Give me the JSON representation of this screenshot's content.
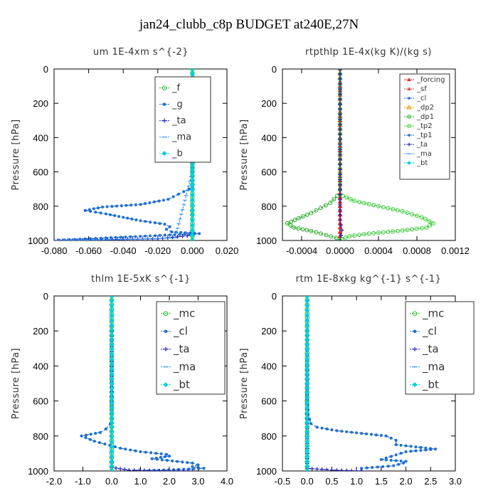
{
  "figure": {
    "title": "jan24_clubb_c8p  BUDGET at240E,27N"
  },
  "colors": {
    "forcing": "#dd2222",
    "sf": "#ee4444",
    "cl": "#1e6fd0",
    "mc": "#22bb22",
    "dp2": "#ee9900",
    "dp1": "#22aa22",
    "tp2": "#33cc33",
    "tp1": "#1e6fd0",
    "ta": "#2222bb",
    "ma": "#3399ff",
    "bt": "#00d0e0",
    "f": "#22bb22",
    "g": "#1e6fd0"
  },
  "chart_data": [
    {
      "type": "line",
      "title": "um   1E-4xm  s^{-2}",
      "ylabel": "Pressure [hPa]",
      "xlim": [
        -0.08,
        0.02
      ],
      "ylim": [
        1000,
        0
      ],
      "xticks": [
        "-0.080",
        "-0.060",
        "-0.040",
        "-0.020",
        "0.000",
        "0.020"
      ],
      "xtick_values": [
        -0.08,
        -0.06,
        -0.04,
        -0.02,
        0.0,
        0.02
      ],
      "yticks": [
        "0",
        "200",
        "400",
        "600",
        "800",
        "1000"
      ],
      "ytick_values": [
        0,
        200,
        400,
        600,
        800,
        1000
      ],
      "legend": [
        "_f",
        "_g",
        "_ta",
        "_ma",
        "_b"
      ],
      "series": [
        {
          "name": "_f",
          "key": "f",
          "x": [
            0,
            0,
            0,
            0,
            0,
            0,
            0,
            0,
            0,
            0,
            0,
            0,
            0,
            0,
            0,
            0,
            0,
            0,
            0,
            0,
            0
          ],
          "y": [
            0,
            50,
            100,
            150,
            200,
            250,
            300,
            350,
            400,
            450,
            500,
            550,
            600,
            650,
            700,
            750,
            800,
            850,
            900,
            950,
            1000
          ]
        },
        {
          "name": "_g",
          "key": "g",
          "x": [
            0.0,
            0.0005,
            0.001,
            0.001,
            0.002,
            0.001,
            0.001,
            0.001,
            0.001,
            0.001,
            0.0,
            0.0,
            0.0,
            0.0,
            -0.002,
            -0.008,
            -0.014,
            -0.03,
            -0.052,
            -0.062,
            -0.05,
            -0.04,
            -0.03,
            -0.016,
            -0.013,
            -0.015,
            -0.012,
            0.004,
            -0.05,
            -0.08
          ],
          "y": [
            0,
            100,
            150,
            200,
            250,
            300,
            350,
            400,
            450,
            500,
            550,
            600,
            650,
            690,
            700,
            730,
            760,
            790,
            805,
            825,
            845,
            865,
            885,
            905,
            920,
            935,
            950,
            960,
            985,
            1000
          ]
        },
        {
          "name": "_ta",
          "key": "ta",
          "x": [
            0.0,
            0.0,
            0.0,
            -0.02,
            -0.078
          ],
          "y": [
            0,
            500,
            970,
            990,
            1000
          ]
        },
        {
          "name": "_ma",
          "key": "ma",
          "x": [
            0.0,
            0.0,
            -0.01,
            -0.04,
            -0.08
          ],
          "y": [
            0,
            600,
            985,
            995,
            1000
          ]
        },
        {
          "name": "_b",
          "key": "bt",
          "x": [
            0.0,
            0.0,
            0.0
          ],
          "y": [
            0,
            500,
            1000
          ]
        }
      ]
    },
    {
      "type": "line",
      "title": "rtpthlp   1E-4x(kg  K)/(kg  s)",
      "ylabel": "Pressure [hPa]",
      "xlim": [
        -0.0006,
        0.0012
      ],
      "ylim": [
        1000,
        0
      ],
      "xticks": [
        "-0.0004",
        "0.0000",
        "0.0004",
        "0.0008",
        "0.0012"
      ],
      "xtick_values": [
        -0.0004,
        0.0,
        0.0004,
        0.0008,
        0.0012
      ],
      "yticks": [
        "0",
        "200",
        "400",
        "600",
        "800",
        "1000"
      ],
      "ytick_values": [
        0,
        200,
        400,
        600,
        800,
        1000
      ],
      "legend": [
        "_forcing",
        "_sf",
        "_cl",
        "_dp2",
        "_dp1",
        "_tp2",
        "_tp1",
        "_ta",
        "_ma",
        "_bt"
      ],
      "series": [
        {
          "name": "_forcing",
          "key": "forcing",
          "x": [
            0,
            0,
            0,
            0,
            0,
            0,
            0,
            0,
            0,
            0,
            0,
            0,
            0,
            0,
            0,
            0,
            0,
            0,
            0,
            0,
            0
          ],
          "y": [
            0,
            50,
            100,
            150,
            200,
            250,
            300,
            350,
            400,
            450,
            500,
            550,
            600,
            650,
            700,
            750,
            800,
            850,
            900,
            950,
            1000
          ]
        },
        {
          "name": "_dp1",
          "key": "dp1",
          "x": [
            0.0,
            0.0,
            -3e-05,
            -0.0001,
            -0.0002,
            -0.0003,
            -0.00043,
            -0.00055,
            -0.00048,
            -0.0003,
            -0.0002,
            -4e-05,
            0.0
          ],
          "y": [
            0,
            700,
            740,
            780,
            810,
            840,
            870,
            900,
            925,
            945,
            960,
            985,
            1000
          ]
        },
        {
          "name": "_tp2",
          "key": "tp2",
          "x": [
            0.0,
            0.0,
            3e-05,
            0.00015,
            0.0004,
            0.00065,
            0.00085,
            0.00097,
            0.0009,
            0.0006,
            0.0003,
            0.0001,
            2e-05,
            0.0
          ],
          "y": [
            0,
            700,
            740,
            770,
            800,
            830,
            865,
            900,
            925,
            945,
            960,
            975,
            990,
            1000
          ]
        },
        {
          "name": "_ta",
          "key": "ta",
          "x": [
            0.0,
            0.0,
            2e-05,
            0.0
          ],
          "y": [
            0,
            880,
            940,
            1000
          ]
        }
      ]
    },
    {
      "type": "line",
      "title": "thlm   1E-5xK  s^{-1}",
      "ylabel": "Pressure [hPa]",
      "xlim": [
        -2.0,
        4.0
      ],
      "ylim": [
        1000,
        0
      ],
      "xticks": [
        "-2.0",
        "-1.0",
        "0.0",
        "1.0",
        "2.0",
        "3.0",
        "4.0"
      ],
      "xtick_values": [
        -2,
        -1,
        0,
        1,
        2,
        3,
        4
      ],
      "yticks": [
        "0",
        "200",
        "400",
        "600",
        "800",
        "1000"
      ],
      "ytick_values": [
        0,
        200,
        400,
        600,
        800,
        1000
      ],
      "legend": [
        "_mc",
        "_cl",
        "_ta",
        "_ma",
        "_bt"
      ],
      "series": [
        {
          "name": "_mc",
          "key": "mc",
          "x": [
            0,
            0,
            0,
            0,
            0,
            0,
            0,
            0,
            0,
            0,
            0,
            0,
            0,
            0,
            0,
            0,
            0,
            0,
            0,
            0,
            0
          ],
          "y": [
            0,
            50,
            100,
            150,
            200,
            250,
            300,
            350,
            400,
            450,
            500,
            550,
            600,
            650,
            700,
            750,
            800,
            850,
            900,
            950,
            1000
          ]
        },
        {
          "name": "_cl",
          "key": "cl",
          "x": [
            0.0,
            0.0,
            0.0,
            -0.05,
            -0.2,
            -0.4,
            -1.05,
            -0.6,
            0.3,
            1.0,
            1.9,
            2.0,
            1.4,
            2.8,
            3.0,
            2.8,
            3.2,
            1.1
          ],
          "y": [
            0,
            600,
            700,
            730,
            760,
            780,
            800,
            830,
            870,
            890,
            905,
            915,
            930,
            955,
            965,
            975,
            985,
            1000
          ]
        },
        {
          "name": "_ta",
          "key": "ta",
          "x": [
            0.0,
            0.0,
            0.6,
            1.5,
            2.8
          ],
          "y": [
            0,
            980,
            995,
            998,
            1000
          ]
        },
        {
          "name": "_ma",
          "key": "ma",
          "x": [
            0.0,
            0.0,
            0.0
          ],
          "y": [
            0,
            500,
            1000
          ]
        },
        {
          "name": "_bt",
          "key": "bt",
          "x": [
            0.0,
            0.0,
            0.0
          ],
          "y": [
            0,
            500,
            1000
          ]
        }
      ]
    },
    {
      "type": "line",
      "title": "rtm   1E-8xkg  kg^{-1}  s^{-1}",
      "ylabel": "Pressure [hPa]",
      "xlim": [
        -0.5,
        3.0
      ],
      "ylim": [
        1000,
        0
      ],
      "xticks": [
        "-0.5",
        "0.0",
        "0.5",
        "1.0",
        "1.5",
        "2.0",
        "2.5",
        "3.0"
      ],
      "xtick_values": [
        -0.5,
        0.0,
        0.5,
        1.0,
        1.5,
        2.0,
        2.5,
        3.0
      ],
      "yticks": [
        "0",
        "200",
        "400",
        "600",
        "800",
        "1000"
      ],
      "ytick_values": [
        0,
        200,
        400,
        600,
        800,
        1000
      ],
      "legend": [
        "_mc",
        "_cl",
        "_ta",
        "_ma",
        "_bt"
      ],
      "series": [
        {
          "name": "_mc",
          "key": "mc",
          "x": [
            0,
            0,
            0,
            0,
            0,
            0,
            0,
            0,
            0,
            0,
            0,
            0,
            0,
            0,
            0,
            0,
            0,
            0,
            0,
            0,
            0
          ],
          "y": [
            0,
            50,
            100,
            150,
            200,
            250,
            300,
            350,
            400,
            450,
            500,
            550,
            600,
            650,
            700,
            750,
            800,
            850,
            900,
            950,
            1000
          ]
        },
        {
          "name": "_cl",
          "key": "cl",
          "x": [
            0.0,
            0.0,
            0.02,
            0.08,
            0.2,
            0.6,
            1.6,
            1.8,
            1.8,
            2.6,
            2.0,
            1.5,
            2.0,
            1.95,
            1.75,
            1.1,
            1.1
          ],
          "y": [
            0,
            600,
            680,
            730,
            750,
            770,
            800,
            825,
            850,
            875,
            890,
            935,
            945,
            955,
            970,
            985,
            1000
          ]
        },
        {
          "name": "_ta",
          "key": "ta",
          "x": [
            0.0,
            0.0,
            0.5,
            1.1
          ],
          "y": [
            0,
            985,
            995,
            1000
          ]
        },
        {
          "name": "_ma",
          "key": "ma",
          "x": [
            0.0,
            0.0,
            0.0
          ],
          "y": [
            0,
            500,
            1000
          ]
        },
        {
          "name": "_bt",
          "key": "bt",
          "x": [
            0.0,
            0.0,
            0.0
          ],
          "y": [
            0,
            500,
            1000
          ]
        }
      ]
    }
  ]
}
